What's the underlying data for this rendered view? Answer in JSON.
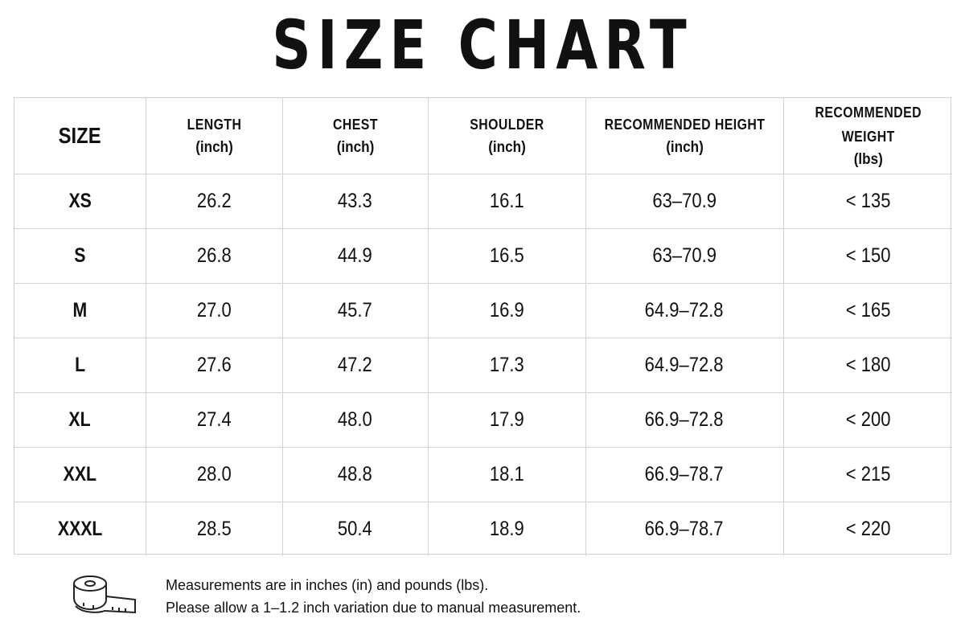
{
  "title": "SIZE CHART",
  "columns": [
    {
      "name": "SIZE",
      "unit": ""
    },
    {
      "name": "LENGTH",
      "unit": "(inch)"
    },
    {
      "name": "CHEST",
      "unit": "(inch)"
    },
    {
      "name": "SHOULDER",
      "unit": "(inch)"
    },
    {
      "name": "RECOMMENDED HEIGHT",
      "unit": "(inch)"
    },
    {
      "name": "RECOMMENDED WEIGHT",
      "unit": "(lbs)"
    }
  ],
  "rows": [
    {
      "size": "XS",
      "length": "26.2",
      "chest": "43.3",
      "shoulder": "16.1",
      "height": "63–70.9",
      "weight": "< 135"
    },
    {
      "size": "S",
      "length": "26.8",
      "chest": "44.9",
      "shoulder": "16.5",
      "height": "63–70.9",
      "weight": "< 150"
    },
    {
      "size": "M",
      "length": "27.0",
      "chest": "45.7",
      "shoulder": "16.9",
      "height": "64.9–72.8",
      "weight": "< 165"
    },
    {
      "size": "L",
      "length": "27.6",
      "chest": "47.2",
      "shoulder": "17.3",
      "height": "64.9–72.8",
      "weight": "< 180"
    },
    {
      "size": "XL",
      "length": "27.4",
      "chest": "48.0",
      "shoulder": "17.9",
      "height": "66.9–72.8",
      "weight": "< 200"
    },
    {
      "size": "XXL",
      "length": "28.0",
      "chest": "48.8",
      "shoulder": "18.1",
      "height": "66.9–78.7",
      "weight": "< 215"
    },
    {
      "size": "XXXL",
      "length": "28.5",
      "chest": "50.4",
      "shoulder": "18.9",
      "height": "66.9–78.7",
      "weight": "< 220"
    }
  ],
  "footer": {
    "icon": "measuring-tape-icon",
    "line1": "Measurements are in inches (in) and pounds (lbs).",
    "line2": "Please allow a 1–1.2 inch variation due to manual measurement."
  }
}
